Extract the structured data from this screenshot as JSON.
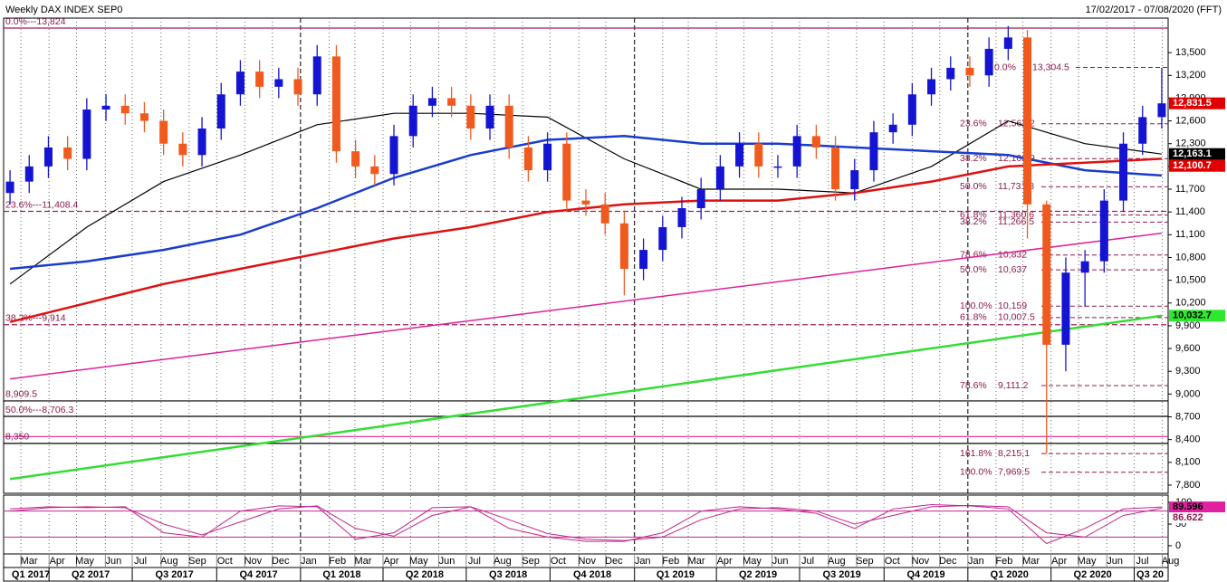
{
  "chart_data": [
    {
      "type": "candlestick",
      "title": "Weekly DAX INDEX SEP0",
      "date_range": "17/02/2017 - 07/08/2020 (FFT)",
      "up_color": "#1414d2",
      "down_color": "#f05a1e",
      "x": [
        0,
        3,
        6,
        9,
        12,
        15,
        18,
        21,
        24,
        27,
        30,
        33,
        36,
        39,
        42,
        45,
        48,
        51,
        54,
        57,
        60,
        63,
        66,
        69,
        72,
        75,
        78,
        81,
        84,
        87,
        90,
        93,
        96,
        99,
        102,
        105,
        108,
        111,
        114,
        117,
        120,
        123,
        126,
        129,
        132,
        135,
        138,
        141,
        144,
        147,
        150,
        153,
        156,
        159,
        162,
        165,
        168,
        171,
        174,
        177,
        180
      ],
      "open": [
        11650,
        11800,
        12000,
        12250,
        12100,
        12750,
        12800,
        12700,
        12600,
        12300,
        12150,
        12500,
        12950,
        13250,
        13050,
        13150,
        12950,
        13450,
        12200,
        12000,
        11900,
        12400,
        12800,
        12900,
        12800,
        12500,
        12800,
        12250,
        11950,
        12300,
        11550,
        11500,
        11250,
        10650,
        10900,
        11200,
        11450,
        11700,
        12000,
        12300,
        12000,
        12000,
        12400,
        12250,
        11700,
        11950,
        12450,
        12550,
        12950,
        13150,
        13300,
        13200,
        13550,
        13700,
        11500,
        9650,
        10600,
        10750,
        11550,
        12300,
        12650
      ],
      "high": [
        11950,
        12150,
        12400,
        12400,
        12900,
        12950,
        12950,
        12850,
        12750,
        12450,
        12650,
        13100,
        13400,
        13400,
        13300,
        13300,
        13600,
        13600,
        12350,
        12150,
        12550,
        12950,
        13050,
        13050,
        12950,
        12950,
        12950,
        12400,
        12450,
        12450,
        11700,
        11650,
        11400,
        11050,
        11350,
        11600,
        11850,
        12150,
        12450,
        12450,
        12150,
        12550,
        12550,
        12400,
        12100,
        12600,
        12700,
        13100,
        13300,
        13450,
        13450,
        13700,
        13850,
        13800,
        11550,
        10800,
        10900,
        11700,
        12450,
        12800,
        13300
      ],
      "low": [
        11500,
        11650,
        11850,
        11950,
        11950,
        12600,
        12550,
        12450,
        12150,
        12000,
        12000,
        12350,
        12800,
        12900,
        12900,
        12800,
        12800,
        12050,
        11850,
        11750,
        11750,
        12250,
        12650,
        12650,
        12350,
        12350,
        12100,
        11800,
        11800,
        11400,
        11350,
        11100,
        10300,
        10500,
        10750,
        11050,
        11300,
        11550,
        11850,
        11850,
        11850,
        11850,
        12100,
        11550,
        11550,
        11800,
        12300,
        12400,
        12800,
        13000,
        13050,
        13050,
        13400,
        11050,
        8215,
        9300,
        10150,
        10600,
        11400,
        12150,
        12500
      ],
      "close": [
        11800,
        12000,
        12250,
        12100,
        12750,
        12800,
        12700,
        12600,
        12300,
        12150,
        12500,
        12950,
        13250,
        13050,
        13150,
        12950,
        13450,
        12200,
        12000,
        11900,
        12400,
        12800,
        12900,
        12800,
        12500,
        12800,
        12250,
        11950,
        12300,
        11550,
        11500,
        11250,
        10650,
        10900,
        11200,
        11450,
        11700,
        12000,
        12300,
        12000,
        12000,
        12400,
        12250,
        11700,
        11950,
        12450,
        12550,
        12950,
        13150,
        13300,
        13200,
        13550,
        13700,
        11500,
        9650,
        10600,
        10750,
        11550,
        12300,
        12650,
        12831.5
      ],
      "series": [
        {
          "color": "#000000",
          "x": [
            0,
            12,
            24,
            36,
            48,
            60,
            72,
            84,
            96,
            108,
            120,
            132,
            144,
            156,
            168,
            180
          ],
          "values": [
            10450,
            11200,
            11800,
            12150,
            12550,
            12700,
            12700,
            12650,
            12100,
            11700,
            11700,
            11650,
            12000,
            12600,
            12300,
            12163.1
          ]
        },
        {
          "color": "#1a3ccc",
          "x": [
            0,
            12,
            24,
            36,
            48,
            60,
            72,
            84,
            96,
            108,
            120,
            132,
            144,
            156,
            168,
            180
          ],
          "values": [
            10650,
            10750,
            10900,
            11100,
            11450,
            11850,
            12150,
            12350,
            12400,
            12300,
            12300,
            12250,
            12200,
            12150,
            11950,
            11880
          ]
        },
        {
          "color": "#dd1111",
          "x": [
            0,
            12,
            24,
            36,
            48,
            60,
            72,
            84,
            96,
            108,
            120,
            132,
            144,
            156,
            168,
            180
          ],
          "values": [
            9950,
            10200,
            10450,
            10650,
            10850,
            11050,
            11200,
            11400,
            11500,
            11550,
            11550,
            11650,
            11800,
            12000,
            12050,
            12100.7
          ]
        },
        {
          "color": "#33dd33",
          "x": [
            0,
            180
          ],
          "values": [
            7880,
            10032.7
          ]
        },
        {
          "color": "#e0209a",
          "x": [
            0,
            180
          ],
          "values": [
            9200,
            11120
          ]
        }
      ],
      "levels": [
        {
          "value": 13824,
          "label": "0.0%---13,824",
          "color": "#a0205a"
        },
        {
          "value": 11408.4,
          "label": "23.6%---11,408.4",
          "color": "#a0205a",
          "dashed": true
        },
        {
          "value": 9914,
          "label": "38.2%---9,914",
          "color": "#a0205a",
          "dashed": true
        },
        {
          "value": 8909.5,
          "label": "8,909.5",
          "color": "#000000"
        },
        {
          "value": 8706.3,
          "label": "50.0%---8,706.3",
          "color": "#000000"
        },
        {
          "value": 8440,
          "color": "#e0209a"
        },
        {
          "value": 8350,
          "label": "8,350",
          "color": "#000000"
        }
      ],
      "fib_levels": [
        {
          "value": 13304.5,
          "pct": "0.0%",
          "label": "13,304.5"
        },
        {
          "value": 12562.2,
          "pct": "23.6%",
          "label": "12,562.2"
        },
        {
          "value": 12102.9,
          "pct": "38.2%",
          "label": "12,102.9"
        },
        {
          "value": 11731.8,
          "pct": "50.0%",
          "label": "11,731.8"
        },
        {
          "value": 11360.6,
          "pct": "61.8%",
          "label": "11,360.6"
        },
        {
          "value": 11266.5,
          "pct": "38.2%",
          "label": "11,266.5"
        },
        {
          "value": 10832,
          "pct": "78.6%",
          "label": "10,832"
        },
        {
          "value": 10637,
          "pct": "50.0%",
          "label": "10,637"
        },
        {
          "value": 10159,
          "pct": "100.0%",
          "label": "10,159"
        },
        {
          "value": 10007.5,
          "pct": "61.8%",
          "label": "10,007.5"
        },
        {
          "value": 9111.2,
          "pct": "78.6%",
          "label": "9,111.2"
        },
        {
          "value": 8215.1,
          "pct": "161.8%",
          "label": "8,215.1"
        },
        {
          "value": 7969.5,
          "pct": "100.0%",
          "label": "7,969.5"
        }
      ],
      "price_tags": [
        {
          "value": 12831.5,
          "label": "12,831.5",
          "color": "#e00000",
          "text_color": "#ffffff"
        },
        {
          "value": 12163.1,
          "label": "12,163.1",
          "color": "#000000",
          "text_color": "#ffffff"
        },
        {
          "value": 12100.7,
          "label": "12,100.7",
          "color": "#e00000",
          "text_color": "#ffffff"
        },
        {
          "value": 10032.7,
          "label": "10,032.7",
          "color": "#2ee82e",
          "text_color": "#000000"
        }
      ],
      "xlim": [
        -1,
        181
      ],
      "ylim": [
        7692,
        13955
      ],
      "yticks": [
        {
          "value": 7800,
          "label": "7,800"
        },
        {
          "value": 8100,
          "label": "8,100"
        },
        {
          "value": 8400,
          "label": "8,400"
        },
        {
          "value": 8700,
          "label": "8,700"
        },
        {
          "value": 9000,
          "label": "9,000"
        },
        {
          "value": 9300,
          "label": "9,300"
        },
        {
          "value": 9600,
          "label": "9,600"
        },
        {
          "value": 9900,
          "label": "9,900"
        },
        {
          "value": 10200,
          "label": "10,200"
        },
        {
          "value": 10500,
          "label": "10,500"
        },
        {
          "value": 10800,
          "label": "10,800"
        },
        {
          "value": 11100,
          "label": "11,100"
        },
        {
          "value": 11400,
          "label": "11,400"
        },
        {
          "value": 11700,
          "label": "11,700"
        },
        {
          "value": 12000,
          "label": "12,000"
        },
        {
          "value": 12300,
          "label": "12,300"
        },
        {
          "value": 12600,
          "label": "12,600"
        },
        {
          "value": 12900,
          "label": "12,900"
        },
        {
          "value": 13200,
          "label": "13,200"
        },
        {
          "value": 13500,
          "label": "13,500"
        }
      ],
      "xticks": [
        {
          "value": 1.7,
          "label": "Mar"
        },
        {
          "value": 6.1,
          "label": "Apr"
        },
        {
          "value": 10.4,
          "label": "May"
        },
        {
          "value": 14.9,
          "label": "Jun"
        },
        {
          "value": 19.1,
          "label": "Jul"
        },
        {
          "value": 23.6,
          "label": "Aug"
        },
        {
          "value": 28.0,
          "label": "Sep"
        },
        {
          "value": 32.3,
          "label": "Oct"
        },
        {
          "value": 36.7,
          "label": "Nov"
        },
        {
          "value": 41.0,
          "label": "Dec"
        },
        {
          "value": 45.4,
          "label": "Jan"
        },
        {
          "value": 49.9,
          "label": "Feb"
        },
        {
          "value": 53.9,
          "label": "Mar"
        },
        {
          "value": 58.3,
          "label": "Apr"
        },
        {
          "value": 62.6,
          "label": "May"
        },
        {
          "value": 67.0,
          "label": "Jun"
        },
        {
          "value": 71.3,
          "label": "Jul"
        },
        {
          "value": 75.7,
          "label": "Aug"
        },
        {
          "value": 80.1,
          "label": "Sep"
        },
        {
          "value": 84.4,
          "label": "Oct"
        },
        {
          "value": 88.9,
          "label": "Nov"
        },
        {
          "value": 93.1,
          "label": "Dec"
        },
        {
          "value": 97.6,
          "label": "Jan"
        },
        {
          "value": 102.0,
          "label": "Feb"
        },
        {
          "value": 106.0,
          "label": "Mar"
        },
        {
          "value": 110.4,
          "label": "Apr"
        },
        {
          "value": 114.7,
          "label": "May"
        },
        {
          "value": 119.1,
          "label": "Jun"
        },
        {
          "value": 123.4,
          "label": "Jul"
        },
        {
          "value": 127.9,
          "label": "Aug"
        },
        {
          "value": 132.3,
          "label": "Sep"
        },
        {
          "value": 136.6,
          "label": "Oct"
        },
        {
          "value": 141.0,
          "label": "Nov"
        },
        {
          "value": 145.3,
          "label": "Dec"
        },
        {
          "value": 149.7,
          "label": "Jan"
        },
        {
          "value": 154.1,
          "label": "Feb"
        },
        {
          "value": 158.3,
          "label": "Mar"
        },
        {
          "value": 162.7,
          "label": "Apr"
        },
        {
          "value": 167.0,
          "label": "May"
        },
        {
          "value": 171.4,
          "label": "Jun"
        },
        {
          "value": 175.7,
          "label": "Jul"
        },
        {
          "value": 180.1,
          "label": "Aug"
        }
      ],
      "quarters": [
        {
          "value": -6.7,
          "label": "Q1 2017"
        },
        {
          "value": 6.1,
          "label": "Q2 2017"
        },
        {
          "value": 19.1,
          "label": "Q3 2017"
        },
        {
          "value": 32.3,
          "label": "Q4 2017"
        },
        {
          "value": 45.4,
          "label": "Q1 2018"
        },
        {
          "value": 58.3,
          "label": "Q2 2018"
        },
        {
          "value": 71.3,
          "label": "Q3 2018"
        },
        {
          "value": 84.4,
          "label": "Q4 2018"
        },
        {
          "value": 97.6,
          "label": "Q1 2019"
        },
        {
          "value": 110.4,
          "label": "Q2 2019"
        },
        {
          "value": 123.4,
          "label": "Q3 2019"
        },
        {
          "value": 136.6,
          "label": "Q4 2019"
        },
        {
          "value": 149.7,
          "label": "Q1 2020"
        },
        {
          "value": 162.7,
          "label": "Q2 2020"
        },
        {
          "value": 175.7,
          "label": "Q3 20"
        }
      ],
      "year_lines": [
        45.4,
        97.6,
        149.7
      ],
      "grid": true
    },
    {
      "type": "line",
      "series": [
        {
          "color": "#c0268c",
          "x": [
            0,
            6,
            12,
            18,
            24,
            30,
            36,
            42,
            48,
            54,
            60,
            66,
            72,
            78,
            84,
            90,
            96,
            102,
            108,
            114,
            120,
            126,
            132,
            138,
            144,
            150,
            156,
            162,
            168,
            174,
            180
          ],
          "values": [
            85,
            90,
            88,
            90,
            30,
            20,
            80,
            92,
            90,
            15,
            30,
            88,
            90,
            40,
            20,
            10,
            10,
            30,
            80,
            90,
            85,
            75,
            40,
            85,
            95,
            92,
            85,
            5,
            40,
            85,
            89.596
          ]
        },
        {
          "color": "#c0268c",
          "x": [
            0,
            6,
            12,
            18,
            24,
            30,
            36,
            42,
            48,
            54,
            60,
            66,
            72,
            78,
            84,
            90,
            96,
            102,
            108,
            114,
            120,
            126,
            132,
            138,
            144,
            150,
            156,
            162,
            168,
            174,
            180
          ],
          "values": [
            80,
            88,
            90,
            88,
            50,
            25,
            55,
            85,
            92,
            40,
            22,
            70,
            90,
            60,
            28,
            15,
            12,
            20,
            60,
            85,
            88,
            80,
            50,
            70,
            90,
            93,
            90,
            30,
            20,
            70,
            86.622
          ]
        }
      ],
      "levels": [
        {
          "value": 80,
          "color": "#c0268c"
        },
        {
          "value": 20,
          "color": "#c0268c"
        }
      ],
      "tags": [
        {
          "value": 89.596,
          "label": "89.596",
          "color": "#e020a0",
          "text_color": "#000000"
        },
        {
          "value": 86.622,
          "label": "86.622",
          "color": "#ffffff",
          "text_color": "#8b1a4a"
        }
      ],
      "xlim": [
        -1,
        181
      ],
      "ylim": [
        -19,
        117
      ],
      "yticks": [
        0,
        50,
        100
      ]
    }
  ]
}
